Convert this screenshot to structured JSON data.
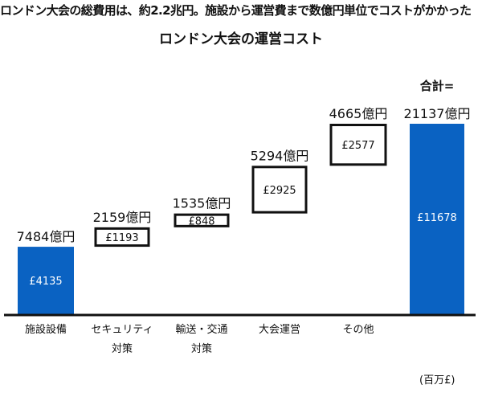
{
  "headline": "ロンドン大会の総費用は、約2.2兆円。施設から運営費まで数億円単位でコストがかかった",
  "chart_data": {
    "type": "bar",
    "subtype": "waterfall",
    "title": "ロンドン大会の運営コスト",
    "unit_label": "(百万£)",
    "categories": [
      [
        "施設設備"
      ],
      [
        "セキュリティ",
        "対策"
      ],
      [
        "輸送・交通",
        "対策"
      ],
      [
        "大会運営"
      ],
      [
        "その他"
      ],
      [
        ""
      ]
    ],
    "values": [
      4135,
      1193,
      848,
      2925,
      2577,
      11678
    ],
    "value_labels": [
      "£4135",
      "£1193",
      "£848",
      "£2925",
      "£2577",
      "£11678"
    ],
    "yen_labels": [
      "7484億円",
      "2159億円",
      "1535億円",
      "5294億円",
      "4665億円",
      "21137億円"
    ],
    "total_prefix": "合計=",
    "kinds": [
      "solid",
      "float",
      "float",
      "float",
      "float",
      "total"
    ],
    "ylim": [
      0,
      11678
    ],
    "grid": false,
    "colors": {
      "bar": "#0a62c2",
      "box_border": "#111111",
      "text": "#111111"
    }
  }
}
